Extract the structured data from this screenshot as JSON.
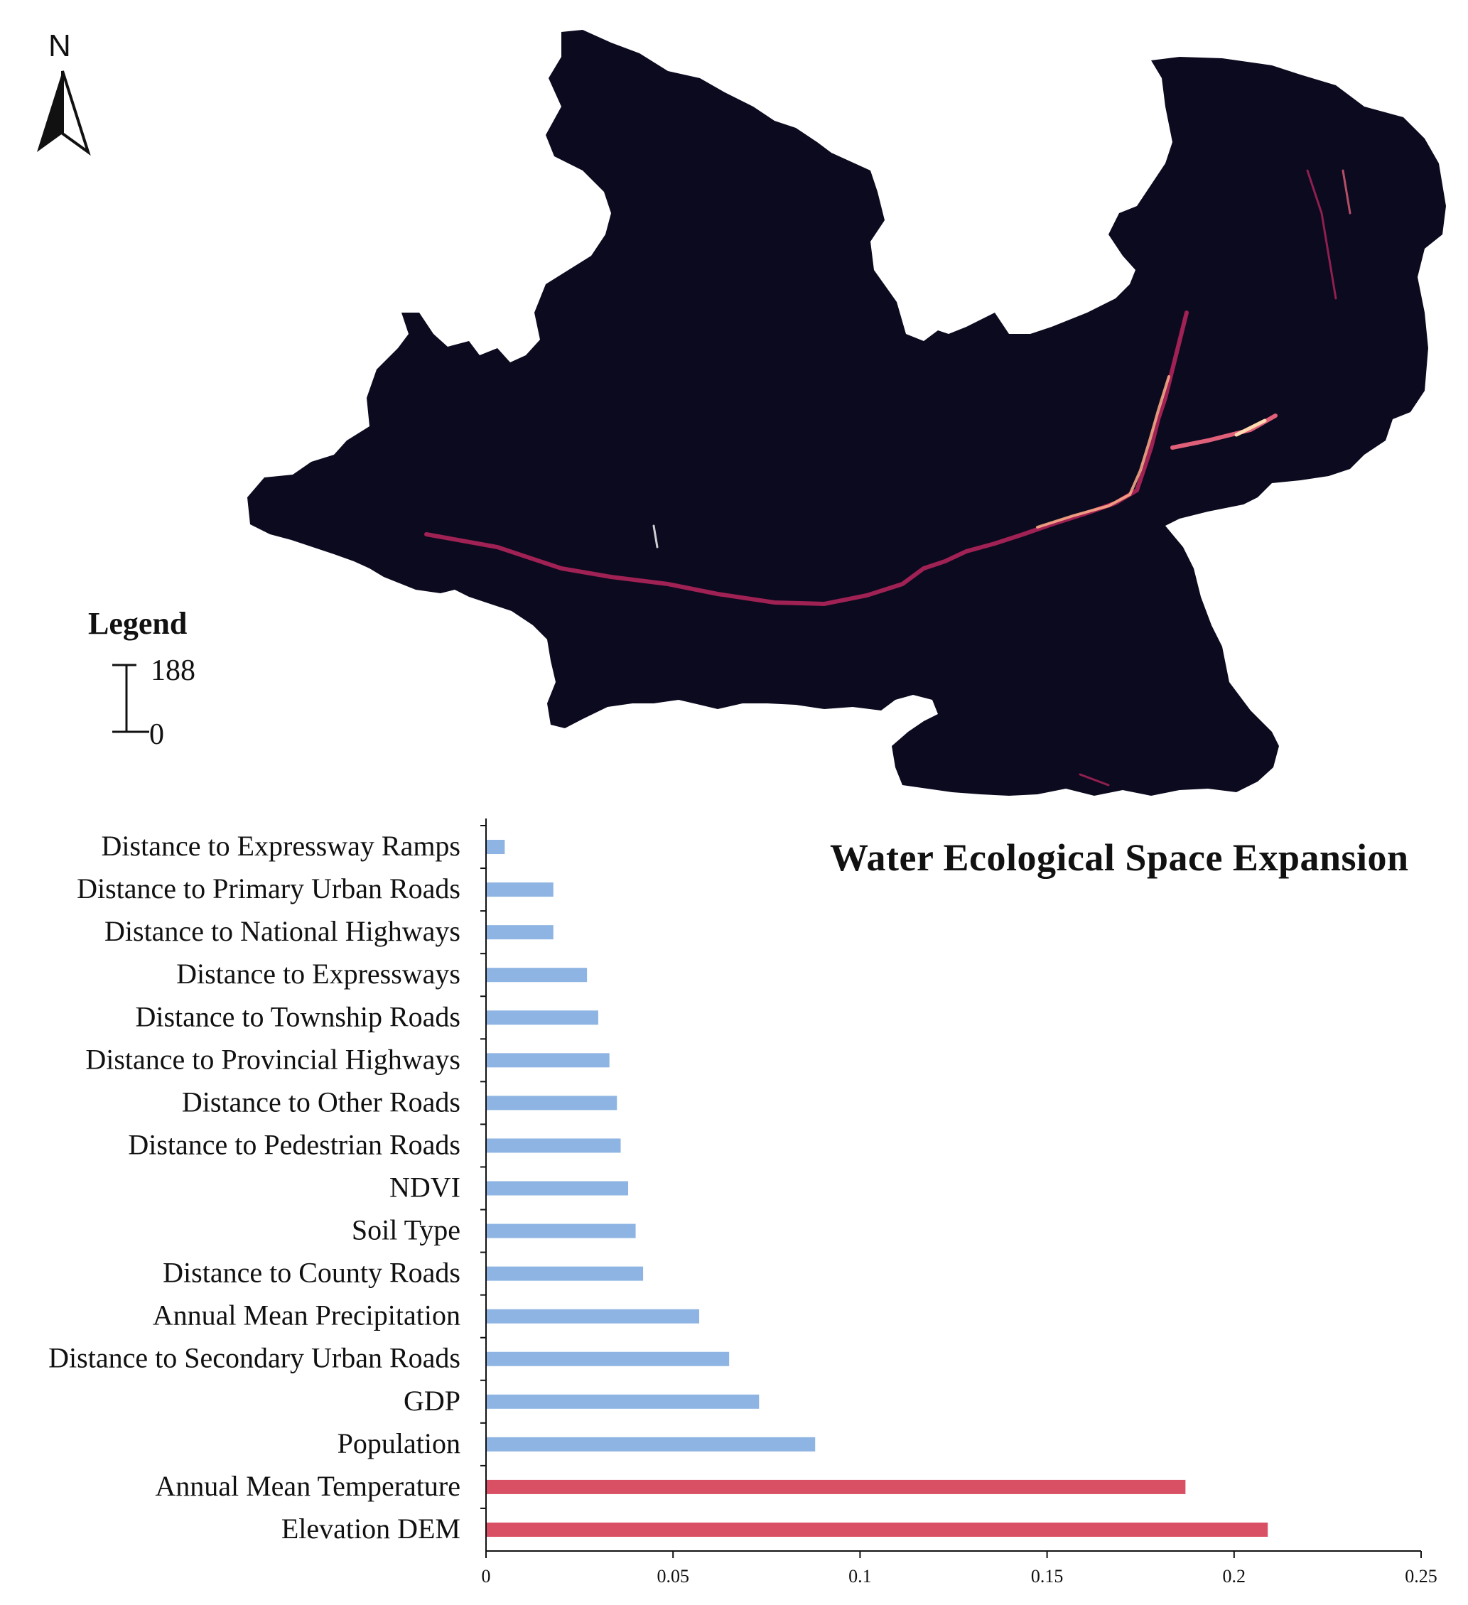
{
  "map": {
    "north_label": "N",
    "legend": {
      "title": "Legend",
      "max_label": "188",
      "min_label": "0"
    },
    "colors": {
      "background": "#0b0a1f",
      "hotspot_low": "#b0245a",
      "hotspot_high": "#ffd9b0"
    }
  },
  "chart_data": {
    "type": "bar",
    "orientation": "horizontal",
    "title": "Water Ecological Space Expansion",
    "xlabel": "",
    "ylabel": "",
    "xlim": [
      0,
      0.25
    ],
    "x_ticks": [
      "0",
      "0.05",
      "0.1",
      "0.15",
      "0.2",
      "0.25"
    ],
    "categories": [
      "Distance to Expressway Ramps",
      "Distance to Primary Urban Roads",
      "Distance to National Highways",
      "Distance to Expressways",
      "Distance to Township Roads",
      "Distance to Provincial Highways",
      "Distance to Other Roads",
      "Distance to Pedestrian Roads",
      "NDVI",
      "Soil Type",
      "Distance to County Roads",
      "Annual Mean Precipitation",
      "Distance to Secondary Urban Roads",
      "GDP",
      "Population",
      "Annual Mean Temperature",
      "Elevation DEM"
    ],
    "values": [
      0.005,
      0.018,
      0.018,
      0.027,
      0.03,
      0.033,
      0.035,
      0.036,
      0.038,
      0.04,
      0.042,
      0.057,
      0.065,
      0.073,
      0.088,
      0.187,
      0.209
    ],
    "colors": {
      "normal": "#8db4e2",
      "highlight": "#d94f63"
    },
    "highlighted": [
      "Annual Mean Temperature",
      "Elevation DEM"
    ],
    "grid": false,
    "legend": "none"
  }
}
